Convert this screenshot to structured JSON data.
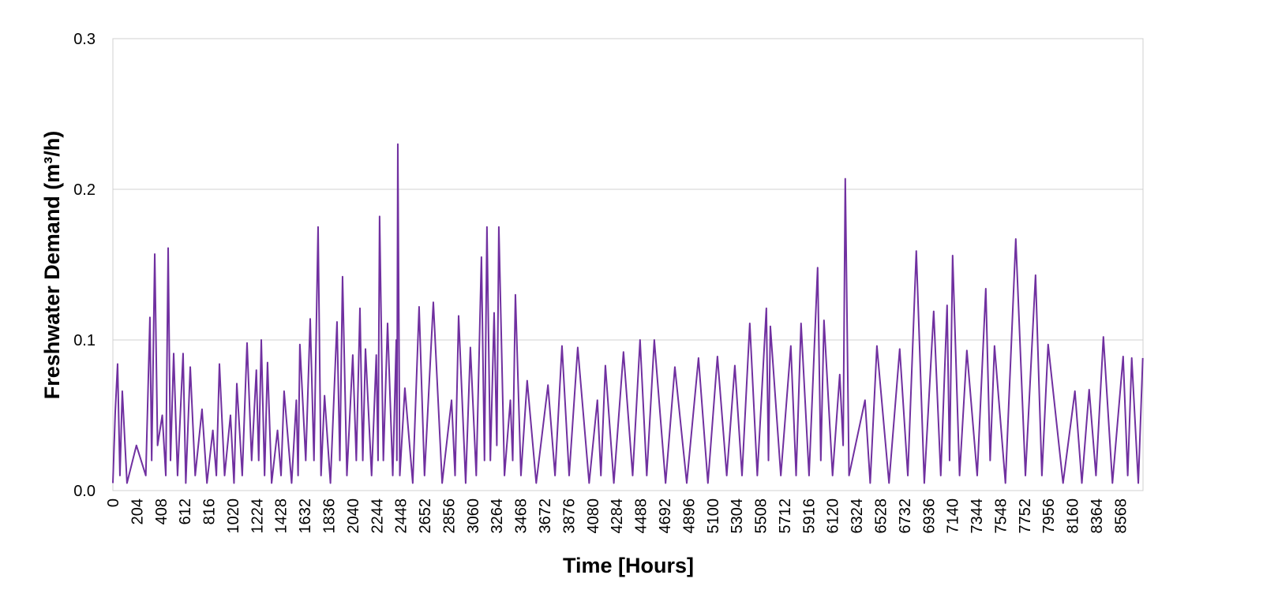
{
  "chart_data": {
    "type": "line",
    "xlabel": "Time [Hours]",
    "ylabel": "Freshwater Demand (m³/h)",
    "x": [
      0,
      20,
      40,
      60,
      80,
      120,
      200,
      280,
      315,
      330,
      356,
      380,
      420,
      450,
      470,
      490,
      517,
      550,
      597,
      620,
      658,
      700,
      758,
      800,
      850,
      880,
      906,
      950,
      1000,
      1030,
      1054,
      1100,
      1141,
      1180,
      1220,
      1240,
      1262,
      1290,
      1315,
      1350,
      1400,
      1430,
      1456,
      1520,
      1560,
      1575,
      1590,
      1640,
      1678,
      1710,
      1745,
      1770,
      1800,
      1850,
      1906,
      1930,
      1953,
      1990,
      2040,
      2070,
      2101,
      2125,
      2148,
      2200,
      2240,
      2255,
      2268,
      2300,
      2336,
      2380,
      2410,
      2415,
      2423,
      2440,
      2483,
      2550,
      2604,
      2650,
      2725,
      2800,
      2880,
      2910,
      2940,
      3000,
      3040,
      3090,
      3134,
      3160,
      3181,
      3210,
      3242,
      3265,
      3282,
      3330,
      3380,
      3400,
      3423,
      3470,
      3523,
      3600,
      3700,
      3760,
      3819,
      3880,
      3953,
      4050,
      4120,
      4150,
      4188,
      4260,
      4342,
      4420,
      4483,
      4540,
      4604,
      4700,
      4779,
      4880,
      4980,
      5060,
      5141,
      5220,
      5289,
      5350,
      5416,
      5480,
      5557,
      5575,
      5591,
      5680,
      5765,
      5810,
      5852,
      5920,
      5993,
      6020,
      6047,
      6120,
      6181,
      6210,
      6228,
      6260,
      6396,
      6440,
      6497,
      6600,
      6691,
      6760,
      6832,
      6900,
      6980,
      7040,
      7094,
      7115,
      7141,
      7200,
      7262,
      7350,
      7423,
      7460,
      7497,
      7590,
      7678,
      7760,
      7846,
      7900,
      7953,
      8080,
      8181,
      8240,
      8302,
      8360,
      8423,
      8500,
      8591,
      8630,
      8664,
      8720,
      8758
    ],
    "series": [
      {
        "name": "Freshwater Demand",
        "color": "#7030a0",
        "values": [
          0.005,
          0.052,
          0.084,
          0.01,
          0.066,
          0.005,
          0.03,
          0.01,
          0.115,
          0.02,
          0.157,
          0.03,
          0.05,
          0.01,
          0.161,
          0.02,
          0.091,
          0.01,
          0.091,
          0.005,
          0.082,
          0.01,
          0.054,
          0.005,
          0.04,
          0.01,
          0.084,
          0.01,
          0.05,
          0.005,
          0.071,
          0.01,
          0.098,
          0.02,
          0.08,
          0.02,
          0.1,
          0.01,
          0.085,
          0.005,
          0.04,
          0.01,
          0.066,
          0.005,
          0.06,
          0.01,
          0.097,
          0.02,
          0.114,
          0.02,
          0.175,
          0.01,
          0.063,
          0.005,
          0.112,
          0.02,
          0.142,
          0.01,
          0.09,
          0.02,
          0.121,
          0.02,
          0.094,
          0.01,
          0.09,
          0.02,
          0.182,
          0.02,
          0.111,
          0.01,
          0.1,
          0.02,
          0.23,
          0.01,
          0.068,
          0.005,
          0.122,
          0.01,
          0.125,
          0.005,
          0.06,
          0.01,
          0.116,
          0.005,
          0.095,
          0.01,
          0.155,
          0.02,
          0.175,
          0.02,
          0.118,
          0.03,
          0.175,
          0.01,
          0.06,
          0.02,
          0.13,
          0.01,
          0.073,
          0.005,
          0.07,
          0.01,
          0.096,
          0.01,
          0.095,
          0.005,
          0.06,
          0.01,
          0.083,
          0.005,
          0.092,
          0.01,
          0.1,
          0.01,
          0.1,
          0.005,
          0.082,
          0.005,
          0.088,
          0.005,
          0.089,
          0.01,
          0.083,
          0.01,
          0.111,
          0.01,
          0.121,
          0.02,
          0.109,
          0.01,
          0.096,
          0.01,
          0.111,
          0.01,
          0.148,
          0.02,
          0.113,
          0.01,
          0.077,
          0.03,
          0.207,
          0.01,
          0.06,
          0.005,
          0.096,
          0.005,
          0.094,
          0.01,
          0.159,
          0.005,
          0.119,
          0.01,
          0.123,
          0.02,
          0.156,
          0.01,
          0.093,
          0.01,
          0.134,
          0.02,
          0.096,
          0.005,
          0.167,
          0.01,
          0.143,
          0.01,
          0.097,
          0.005,
          0.066,
          0.005,
          0.067,
          0.01,
          0.102,
          0.005,
          0.089,
          0.01,
          0.088,
          0.005,
          0.088
        ]
      }
    ],
    "xlim": [
      0,
      8760
    ],
    "xticks": [
      0,
      204,
      408,
      612,
      816,
      1020,
      1224,
      1428,
      1632,
      1836,
      2040,
      2244,
      2448,
      2652,
      2856,
      3060,
      3264,
      3468,
      3672,
      3876,
      4080,
      4284,
      4488,
      4692,
      4896,
      5100,
      5304,
      5508,
      5712,
      5916,
      6120,
      6324,
      6528,
      6732,
      6936,
      7140,
      7344,
      7548,
      7752,
      7956,
      8160,
      8364,
      8568
    ],
    "ylim": [
      0,
      0.3
    ],
    "yticks": [
      {
        "value": 0,
        "label": "0.0"
      },
      0.1,
      0.2,
      0.3
    ],
    "grid": true
  }
}
